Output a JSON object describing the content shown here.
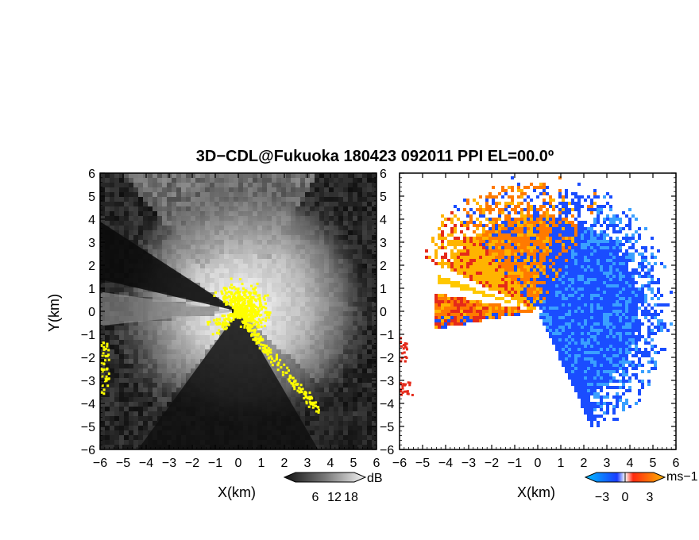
{
  "title": "3D−CDL@Fukuoka 180423 092011 PPI EL=00.0º",
  "colors": {
    "yellow": "#ffff00",
    "negative_velocity": "#1a4dff",
    "positive_velocity": "#ff7a00",
    "extreme_red": "#e52a1a"
  },
  "chart_data": [
    {
      "type": "heatmap",
      "name": "reflectivity-ppi",
      "xlabel": "X(km)",
      "ylabel": "Y(km)",
      "xlim": [
        -6,
        6
      ],
      "ylim": [
        -6,
        6
      ],
      "x_ticks": [
        "−6",
        "−5",
        "−4",
        "−3",
        "−2",
        "−1",
        "0",
        "1",
        "2",
        "3",
        "4",
        "5",
        "6"
      ],
      "y_ticks": [
        "6",
        "5",
        "4",
        "3",
        "2",
        "1",
        "0",
        "−1",
        "−2",
        "−3",
        "−4",
        "−5",
        "−6"
      ],
      "colormap": "grayscale",
      "colorbar": {
        "unit": "dB",
        "ticks": [
          "6",
          "12",
          "18"
        ],
        "values": [
          6,
          12,
          18
        ]
      },
      "features": {
        "blocked_sectors_deg": [
          [
            147,
            167
          ],
          [
            172,
            186
          ],
          [
            232,
            318
          ]
        ],
        "high_value_core_radius_km": 1.2
      }
    },
    {
      "type": "heatmap",
      "name": "radial-velocity-ppi",
      "xlabel": "X(km)",
      "xlim": [
        -6,
        6
      ],
      "ylim": [
        -6,
        6
      ],
      "x_ticks": [
        "−6",
        "−5",
        "−4",
        "−3",
        "−2",
        "−1",
        "0",
        "1",
        "2",
        "3",
        "4",
        "5",
        "6"
      ],
      "y_ticks": [
        "6",
        "5",
        "4",
        "3",
        "2",
        "1",
        "0",
        "−1",
        "−2",
        "−3",
        "−4",
        "−5",
        "−6"
      ],
      "colormap": "blue-white-orange",
      "colorbar": {
        "unit": "ms−1",
        "ticks": [
          "−3",
          "0",
          "3"
        ],
        "values": [
          -3,
          0,
          3
        ]
      },
      "features": {
        "negative_sector": "east",
        "positive_sector": "north-west"
      }
    }
  ]
}
